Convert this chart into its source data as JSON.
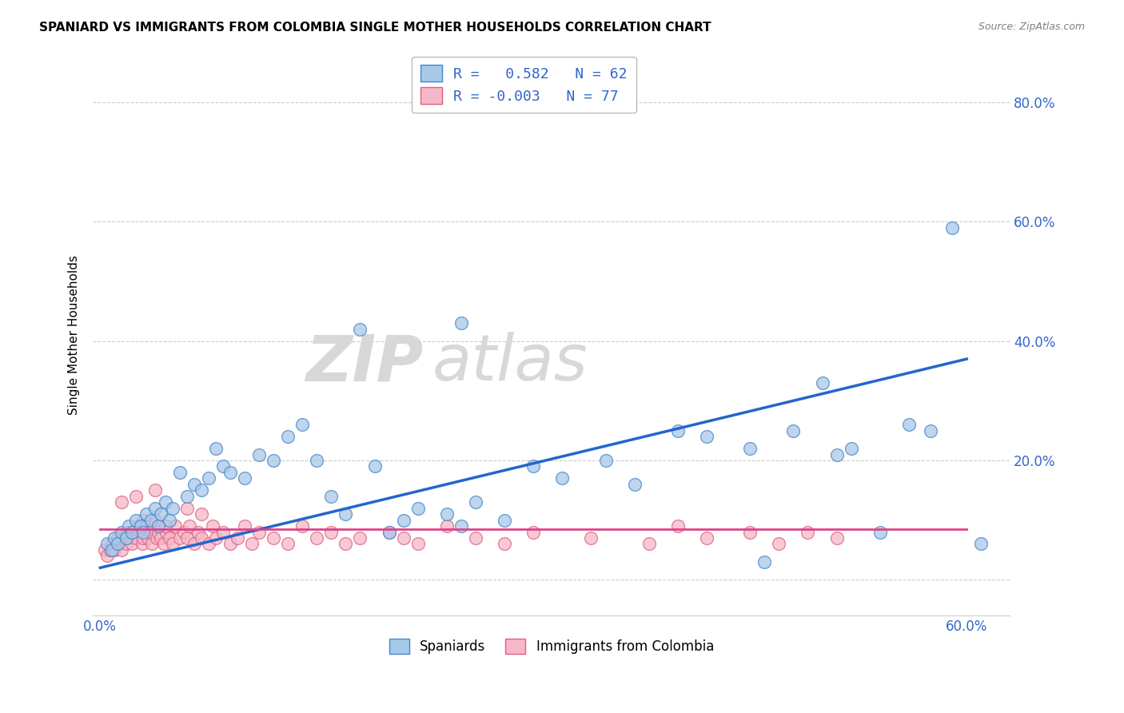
{
  "title": "SPANIARD VS IMMIGRANTS FROM COLOMBIA SINGLE MOTHER HOUSEHOLDS CORRELATION CHART",
  "source": "Source: ZipAtlas.com",
  "ylabel": "Single Mother Households",
  "legend_label_blue": "Spaniards",
  "legend_label_pink": "Immigrants from Colombia",
  "blue_fill": "#a8c8e8",
  "blue_edge": "#4488cc",
  "pink_fill": "#f5b8c8",
  "pink_edge": "#e06080",
  "blue_line": "#2266cc",
  "pink_line": "#dd4488",
  "grid_color": "#cccccc",
  "tick_color": "#3366cc",
  "xlim": [
    -0.005,
    0.63
  ],
  "ylim": [
    -0.06,
    0.88
  ],
  "x_ticks": [
    0.0,
    0.1,
    0.2,
    0.3,
    0.4,
    0.5,
    0.6
  ],
  "x_tick_labels": [
    "0.0%",
    "",
    "",
    "",
    "",
    "",
    "60.0%"
  ],
  "y_ticks": [
    0.0,
    0.2,
    0.4,
    0.6,
    0.8
  ],
  "y_tick_labels_right": [
    "",
    "20.0%",
    "40.0%",
    "60.0%",
    "80.0%"
  ],
  "spaniards_R": 0.582,
  "spaniards_N": 62,
  "colombia_R": -0.003,
  "colombia_N": 77,
  "blue_line_x": [
    0.0,
    0.6
  ],
  "blue_line_y": [
    0.02,
    0.37
  ],
  "pink_line_x": [
    0.0,
    0.6
  ],
  "pink_line_y": [
    0.085,
    0.085
  ],
  "blue_x": [
    0.005,
    0.008,
    0.01,
    0.012,
    0.015,
    0.018,
    0.02,
    0.022,
    0.025,
    0.028,
    0.03,
    0.032,
    0.035,
    0.038,
    0.04,
    0.042,
    0.045,
    0.048,
    0.05,
    0.055,
    0.06,
    0.065,
    0.07,
    0.075,
    0.08,
    0.085,
    0.09,
    0.1,
    0.11,
    0.12,
    0.13,
    0.14,
    0.15,
    0.16,
    0.17,
    0.19,
    0.2,
    0.21,
    0.22,
    0.24,
    0.25,
    0.26,
    0.28,
    0.3,
    0.32,
    0.35,
    0.37,
    0.4,
    0.42,
    0.45,
    0.46,
    0.48,
    0.5,
    0.51,
    0.52,
    0.54,
    0.56,
    0.575,
    0.59,
    0.61,
    0.25,
    0.18
  ],
  "blue_y": [
    0.06,
    0.05,
    0.07,
    0.06,
    0.08,
    0.07,
    0.09,
    0.08,
    0.1,
    0.09,
    0.08,
    0.11,
    0.1,
    0.12,
    0.09,
    0.11,
    0.13,
    0.1,
    0.12,
    0.18,
    0.14,
    0.16,
    0.15,
    0.17,
    0.22,
    0.19,
    0.18,
    0.17,
    0.21,
    0.2,
    0.24,
    0.26,
    0.2,
    0.14,
    0.11,
    0.19,
    0.08,
    0.1,
    0.12,
    0.11,
    0.09,
    0.13,
    0.1,
    0.19,
    0.17,
    0.2,
    0.16,
    0.25,
    0.24,
    0.22,
    0.03,
    0.25,
    0.33,
    0.21,
    0.22,
    0.08,
    0.26,
    0.25,
    0.59,
    0.06,
    0.43,
    0.42
  ],
  "pink_x": [
    0.003,
    0.005,
    0.007,
    0.008,
    0.01,
    0.012,
    0.013,
    0.015,
    0.016,
    0.018,
    0.019,
    0.02,
    0.022,
    0.023,
    0.025,
    0.026,
    0.028,
    0.029,
    0.03,
    0.032,
    0.033,
    0.035,
    0.036,
    0.038,
    0.039,
    0.04,
    0.042,
    0.044,
    0.046,
    0.048,
    0.05,
    0.052,
    0.055,
    0.058,
    0.06,
    0.062,
    0.065,
    0.068,
    0.07,
    0.075,
    0.078,
    0.08,
    0.085,
    0.09,
    0.095,
    0.1,
    0.105,
    0.11,
    0.12,
    0.13,
    0.14,
    0.15,
    0.16,
    0.17,
    0.18,
    0.2,
    0.21,
    0.22,
    0.24,
    0.26,
    0.28,
    0.3,
    0.34,
    0.38,
    0.4,
    0.42,
    0.45,
    0.47,
    0.49,
    0.51,
    0.038,
    0.025,
    0.06,
    0.015,
    0.07,
    0.03,
    0.045
  ],
  "pink_y": [
    0.05,
    0.04,
    0.05,
    0.06,
    0.05,
    0.07,
    0.06,
    0.05,
    0.07,
    0.06,
    0.08,
    0.07,
    0.06,
    0.08,
    0.07,
    0.09,
    0.08,
    0.06,
    0.07,
    0.09,
    0.07,
    0.08,
    0.06,
    0.1,
    0.07,
    0.08,
    0.07,
    0.06,
    0.08,
    0.07,
    0.06,
    0.09,
    0.07,
    0.08,
    0.07,
    0.09,
    0.06,
    0.08,
    0.07,
    0.06,
    0.09,
    0.07,
    0.08,
    0.06,
    0.07,
    0.09,
    0.06,
    0.08,
    0.07,
    0.06,
    0.09,
    0.07,
    0.08,
    0.06,
    0.07,
    0.08,
    0.07,
    0.06,
    0.09,
    0.07,
    0.06,
    0.08,
    0.07,
    0.06,
    0.09,
    0.07,
    0.08,
    0.06,
    0.08,
    0.07,
    0.15,
    0.14,
    0.12,
    0.13,
    0.11,
    0.1,
    0.09
  ]
}
